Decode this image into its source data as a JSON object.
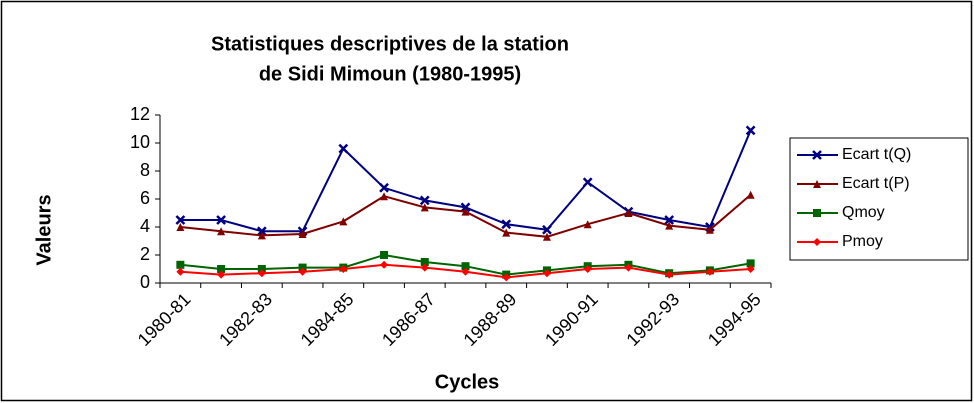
{
  "chart_data": {
    "type": "line",
    "title": [
      "Statistiques descriptives de la station",
      "de Sidi Mimoun (1980-1995)"
    ],
    "y_label": "Valeurs",
    "x_label": "Cycles",
    "categories": [
      "1980-81",
      null,
      "1982-83",
      null,
      "1984-85",
      null,
      "1986-87",
      null,
      "1988-89",
      null,
      "1990-91",
      null,
      "1992-93",
      null,
      "1994-95"
    ],
    "series": [
      {
        "name": "Ecart t(Q)",
        "color": "#000080",
        "marker": "x",
        "values": [
          4.5,
          4.5,
          3.7,
          3.7,
          9.6,
          6.8,
          5.9,
          5.4,
          4.2,
          3.8,
          7.2,
          5.1,
          4.5,
          4.0,
          10.9
        ]
      },
      {
        "name": "Ecart t(P)",
        "color": "#800000",
        "marker": "triangle",
        "values": [
          4.0,
          3.7,
          3.4,
          3.5,
          4.4,
          6.2,
          5.4,
          5.1,
          3.6,
          3.3,
          4.2,
          5.0,
          4.1,
          3.8,
          6.3
        ]
      },
      {
        "name": "Qmoy",
        "color": "#006400",
        "marker": "square",
        "values": [
          1.3,
          1.0,
          1.0,
          1.1,
          1.1,
          2.0,
          1.5,
          1.2,
          0.6,
          0.9,
          1.2,
          1.3,
          0.7,
          0.9,
          1.4
        ]
      },
      {
        "name": "Pmoy",
        "color": "#ff0000",
        "marker": "diamond",
        "values": [
          0.8,
          0.6,
          0.7,
          0.8,
          1.0,
          1.3,
          1.1,
          0.8,
          0.4,
          0.7,
          1.0,
          1.1,
          0.6,
          0.8,
          1.0
        ]
      }
    ],
    "ylim": [
      0,
      12
    ],
    "yticks": [
      0,
      2,
      4,
      6,
      8,
      10,
      12
    ],
    "grid": false,
    "legend": "right"
  }
}
